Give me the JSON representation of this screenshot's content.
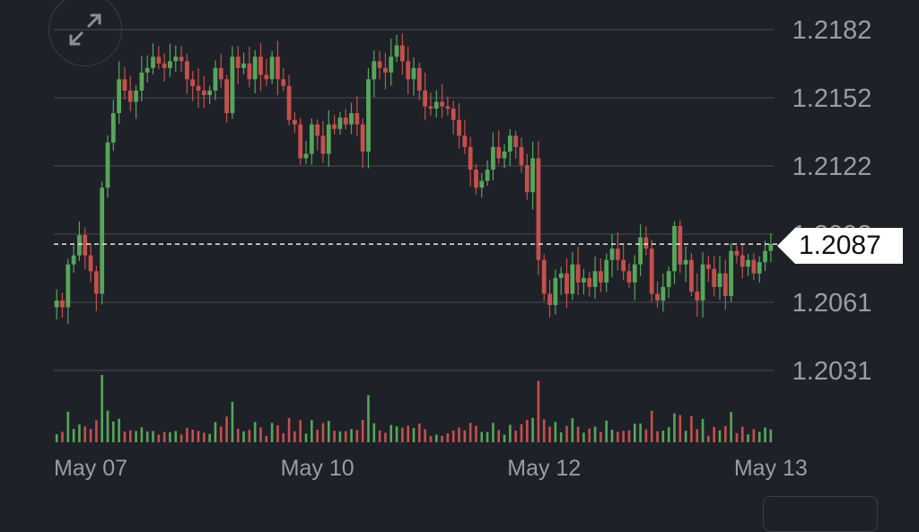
{
  "colors": {
    "background": "#1f2128",
    "grid": "#40434c",
    "up": "#56a65a",
    "down": "#c4504c",
    "axis_text": "#9a9ca3",
    "price_tag_bg": "#ffffff"
  },
  "controls": {
    "expand_icon": "expand-arrows-icon"
  },
  "current_price": {
    "label": "1.2087",
    "value": 1.2087
  },
  "chart_data": {
    "type": "candlestick",
    "title": "",
    "xlabel": "",
    "ylabel": "",
    "ylim": [
      1.2031,
      1.2182
    ],
    "y_ticks": [
      "1.2182",
      "1.2152",
      "1.2122",
      "1.2092",
      "1.2061",
      "1.2031"
    ],
    "x_ticks": [
      {
        "label": "May 07",
        "index": 6
      },
      {
        "label": "May 10",
        "index": 46
      },
      {
        "label": "May 12",
        "index": 86
      },
      {
        "label": "May 13",
        "index": 126
      }
    ],
    "grid": true,
    "close": [
      1.2062,
      1.2059,
      1.2078,
      1.2082,
      1.2091,
      1.2082,
      1.2075,
      1.2065,
      1.2112,
      1.2132,
      1.2145,
      1.216,
      1.2155,
      1.215,
      1.2155,
      1.2163,
      1.2165,
      1.217,
      1.2167,
      1.2165,
      1.2168,
      1.217,
      1.2168,
      1.216,
      1.2157,
      1.2155,
      1.2153,
      1.2155,
      1.2165,
      1.216,
      1.2145,
      1.217,
      1.2165,
      1.2167,
      1.216,
      1.217,
      1.2162,
      1.216,
      1.217,
      1.216,
      1.2157,
      1.2142,
      1.214,
      1.2125,
      1.2127,
      1.214,
      1.2135,
      1.2127,
      1.214,
      1.2138,
      1.2143,
      1.214,
      1.2145,
      1.214,
      1.2128,
      1.216,
      1.2168,
      1.2165,
      1.2163,
      1.217,
      1.2175,
      1.2168,
      1.216,
      1.2165,
      1.2155,
      1.2148,
      1.2147,
      1.215,
      1.2148,
      1.2147,
      1.2142,
      1.2135,
      1.213,
      1.212,
      1.2112,
      1.2115,
      1.212,
      1.213,
      1.2125,
      1.2128,
      1.2135,
      1.213,
      1.2122,
      1.211,
      1.2125,
      1.208,
      1.2065,
      1.206,
      1.2072,
      1.2074,
      1.2065,
      1.2078,
      1.207,
      1.2072,
      1.2068,
      1.2075,
      1.207,
      1.208,
      1.2085,
      1.208,
      1.2075,
      1.207,
      1.2078,
      1.209,
      1.2085,
      1.2065,
      1.2062,
      1.2068,
      1.2075,
      1.2095,
      1.2078,
      1.208,
      1.2066,
      1.2062,
      1.2078,
      1.2076,
      1.2068,
      1.2074,
      1.2064,
      1.2084,
      1.2082,
      1.2077,
      1.208,
      1.2074,
      1.2079,
      1.2084,
      1.2087
    ]
  }
}
